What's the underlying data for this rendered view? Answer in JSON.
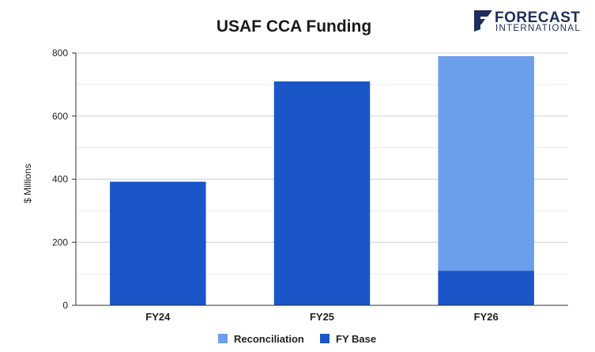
{
  "chart_data": {
    "type": "bar",
    "stacked": true,
    "title": "USAF CCA Funding",
    "xlabel": "",
    "ylabel": "$ Millions",
    "categories": [
      "FY24",
      "FY25",
      "FY26"
    ],
    "series": [
      {
        "name": "FY Base",
        "values": [
          392,
          710,
          110
        ],
        "color": "#1a56c8"
      },
      {
        "name": "Reconciliation",
        "values": [
          0,
          0,
          680
        ],
        "color": "#6d9eeb"
      }
    ],
    "ylim": [
      0,
      800
    ],
    "yticks": [
      0,
      200,
      400,
      600,
      800
    ],
    "grid": true,
    "legend_position": "bottom"
  },
  "legend": {
    "items": [
      {
        "label": "Reconciliation",
        "color": "#6d9eeb"
      },
      {
        "label": "FY Base",
        "color": "#1a56c8"
      }
    ]
  },
  "logo": {
    "name": "FORECAST",
    "sub": "INTERNATIONAL",
    "color": "#1d2d5c"
  }
}
